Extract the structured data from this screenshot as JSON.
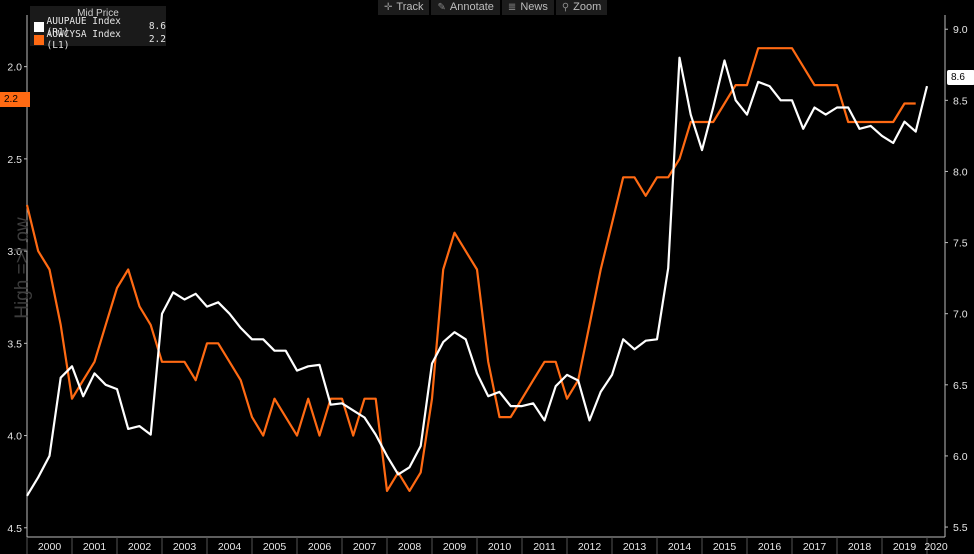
{
  "toolbar": {
    "items": [
      {
        "label": "Track",
        "icon": "crosshair-icon",
        "glyph": "✛"
      },
      {
        "label": "Annotate",
        "icon": "pencil-icon",
        "glyph": "✎"
      },
      {
        "label": "News",
        "icon": "news-icon",
        "glyph": "≣"
      },
      {
        "label": "Zoom",
        "icon": "magnifier-icon",
        "glyph": "⚲"
      }
    ]
  },
  "legend": {
    "title": "Mid Price",
    "entries": [
      {
        "name": "AUUPAUE Index  (R1)",
        "value": "8.6",
        "color": "#ffffff"
      },
      {
        "name": "AUWCYSA Index  (L1)",
        "value": "2.2",
        "color": "#ff6a13"
      }
    ]
  },
  "side_label": "High =>Low",
  "flags": {
    "left_value": "2.2",
    "right_value": "8.6"
  },
  "chart_data": {
    "type": "line",
    "background": "#000000",
    "x_range": [
      2000.0,
      2020.4
    ],
    "x_tick_labels": [
      "2000",
      "2001",
      "2002",
      "2003",
      "2004",
      "2005",
      "2006",
      "2007",
      "2008",
      "2009",
      "2010",
      "2011",
      "2012",
      "2013",
      "2014",
      "2015",
      "2016",
      "2017",
      "2018",
      "2019",
      "2020"
    ],
    "left_axis": {
      "inverted": true,
      "range": [
        1.72,
        4.55
      ],
      "ticks": [
        "2.0",
        "2.5",
        "3.0",
        "3.5",
        "4.0",
        "4.5"
      ]
    },
    "right_axis": {
      "range": [
        5.43,
        9.1
      ],
      "ticks": [
        "5.5",
        "6.0",
        "6.5",
        "7.0",
        "7.5",
        "8.0",
        "8.5",
        "9.0"
      ]
    },
    "series": [
      {
        "name": "AUUPAUE Index  (R1)",
        "axis": "right",
        "color": "#ffffff",
        "x": [
          2000.0,
          2000.25,
          2000.5,
          2000.75,
          2001.0,
          2001.25,
          2001.5,
          2001.75,
          2002.0,
          2002.25,
          2002.5,
          2002.75,
          2003.0,
          2003.25,
          2003.5,
          2003.75,
          2004.0,
          2004.25,
          2004.5,
          2004.75,
          2005.0,
          2005.25,
          2005.5,
          2005.75,
          2006.0,
          2006.25,
          2006.5,
          2006.75,
          2007.0,
          2007.25,
          2007.5,
          2007.75,
          2008.0,
          2008.25,
          2008.5,
          2008.75,
          2009.0,
          2009.25,
          2009.5,
          2009.75,
          2010.0,
          2010.25,
          2010.5,
          2010.75,
          2011.0,
          2011.25,
          2011.5,
          2011.75,
          2012.0,
          2012.25,
          2012.5,
          2012.75,
          2013.0,
          2013.25,
          2013.5,
          2013.75,
          2014.0,
          2014.25,
          2014.5,
          2014.75,
          2015.0,
          2015.25,
          2015.5,
          2015.75,
          2016.0,
          2016.25,
          2016.5,
          2016.75,
          2017.0,
          2017.25,
          2017.5,
          2017.75,
          2018.0,
          2018.25,
          2018.5,
          2018.75,
          2019.0,
          2019.25,
          2019.5,
          2019.75,
          2020.0
        ],
        "values": [
          5.72,
          5.85,
          6.0,
          6.55,
          6.63,
          6.42,
          6.58,
          6.5,
          6.47,
          6.19,
          6.21,
          6.15,
          7.0,
          7.15,
          7.1,
          7.14,
          7.05,
          7.08,
          7.0,
          6.9,
          6.82,
          6.82,
          6.74,
          6.74,
          6.6,
          6.63,
          6.64,
          6.36,
          6.37,
          6.32,
          6.27,
          6.15,
          6.0,
          5.87,
          5.92,
          6.07,
          6.65,
          6.8,
          6.87,
          6.82,
          6.58,
          6.42,
          6.45,
          6.35,
          6.35,
          6.37,
          6.25,
          6.49,
          6.57,
          6.53,
          6.25,
          6.45,
          6.57,
          6.82,
          6.75,
          6.81,
          6.82,
          7.32,
          8.8,
          8.4,
          8.15,
          8.45,
          8.78,
          8.5,
          8.4,
          8.63,
          8.6,
          8.5,
          8.5,
          8.3,
          8.45,
          8.4,
          8.45,
          8.45,
          8.3,
          8.32,
          8.25,
          8.2,
          8.35,
          8.28,
          8.6
        ]
      },
      {
        "name": "AUWCYSA Index  (L1)",
        "axis": "left",
        "color": "#ff6a13",
        "x": [
          2000.0,
          2000.25,
          2000.5,
          2000.75,
          2001.0,
          2001.25,
          2001.5,
          2001.75,
          2002.0,
          2002.25,
          2002.5,
          2002.75,
          2003.0,
          2003.25,
          2003.5,
          2003.75,
          2004.0,
          2004.25,
          2004.5,
          2004.75,
          2005.0,
          2005.25,
          2005.5,
          2005.75,
          2006.0,
          2006.25,
          2006.5,
          2006.75,
          2007.0,
          2007.25,
          2007.5,
          2007.75,
          2008.0,
          2008.25,
          2008.5,
          2008.75,
          2009.0,
          2009.25,
          2009.5,
          2009.75,
          2010.0,
          2010.25,
          2010.5,
          2010.75,
          2011.0,
          2011.25,
          2011.5,
          2011.75,
          2012.0,
          2012.25,
          2012.5,
          2012.75,
          2013.0,
          2013.25,
          2013.5,
          2013.75,
          2014.0,
          2014.25,
          2014.5,
          2014.75,
          2015.0,
          2015.25,
          2015.5,
          2015.75,
          2016.0,
          2016.25,
          2016.5,
          2016.75,
          2017.0,
          2017.25,
          2017.5,
          2017.75,
          2018.0,
          2018.25,
          2018.5,
          2018.75,
          2019.0,
          2019.25,
          2019.5,
          2019.75
        ],
        "values": [
          2.75,
          3.0,
          3.1,
          3.4,
          3.8,
          3.7,
          3.6,
          3.4,
          3.2,
          3.1,
          3.3,
          3.4,
          3.6,
          3.6,
          3.6,
          3.7,
          3.5,
          3.5,
          3.6,
          3.7,
          3.9,
          4.0,
          3.8,
          3.9,
          4.0,
          3.8,
          4.0,
          3.8,
          3.8,
          4.0,
          3.8,
          3.8,
          4.3,
          4.2,
          4.3,
          4.2,
          3.8,
          3.1,
          2.9,
          3.0,
          3.1,
          3.6,
          3.9,
          3.9,
          3.8,
          3.7,
          3.6,
          3.6,
          3.8,
          3.7,
          3.4,
          3.1,
          2.85,
          2.6,
          2.6,
          2.7,
          2.6,
          2.6,
          2.5,
          2.3,
          2.3,
          2.3,
          2.2,
          2.1,
          2.1,
          1.9,
          1.9,
          1.9,
          1.9,
          2.0,
          2.1,
          2.1,
          2.1,
          2.3,
          2.3,
          2.3,
          2.3,
          2.3,
          2.2,
          2.2
        ]
      }
    ]
  }
}
